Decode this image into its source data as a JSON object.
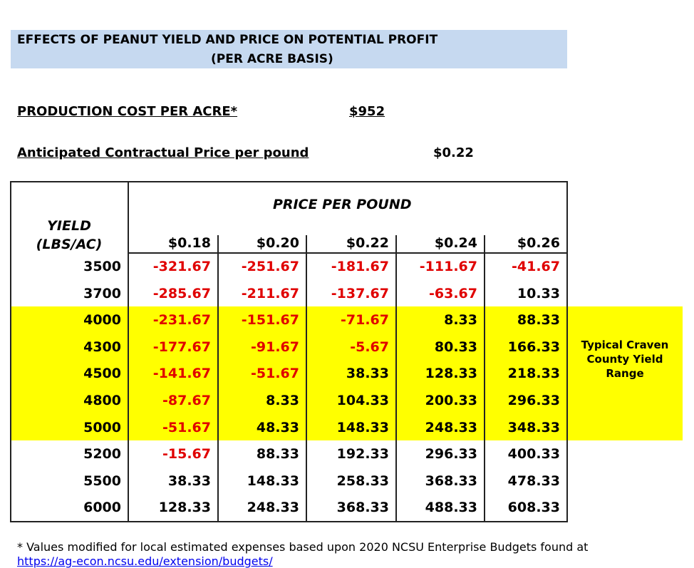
{
  "header": {
    "title": "EFFECTS OF PEANUT YIELD AND PRICE ON POTENTIAL PROFIT",
    "subtitle": "(PER ACRE BASIS)"
  },
  "production_cost": {
    "label": "PRODUCTION COST PER ACRE*",
    "value": "$952"
  },
  "contract_price": {
    "label": "Anticipated Contractual Price per pound",
    "value": "$0.22"
  },
  "table": {
    "price_header": "PRICE PER POUND",
    "yield_header": [
      "YIELD",
      "(LBS/AC)"
    ],
    "columns": [
      "$0.18",
      "$0.20",
      "$0.22",
      "$0.24",
      "$0.26"
    ],
    "rows": [
      {
        "yield": 3500,
        "values": [
          -321.67,
          -251.67,
          -181.67,
          -111.67,
          -41.67
        ]
      },
      {
        "yield": 3700,
        "values": [
          -285.67,
          -211.67,
          -137.67,
          -63.67,
          10.33
        ]
      },
      {
        "yield": 4000,
        "values": [
          -231.67,
          -151.67,
          -71.67,
          8.33,
          88.33
        ]
      },
      {
        "yield": 4300,
        "values": [
          -177.67,
          -91.67,
          -5.67,
          80.33,
          166.33
        ]
      },
      {
        "yield": 4500,
        "values": [
          -141.67,
          -51.67,
          38.33,
          128.33,
          218.33
        ]
      },
      {
        "yield": 4800,
        "values": [
          -87.67,
          8.33,
          104.33,
          200.33,
          296.33
        ]
      },
      {
        "yield": 5000,
        "values": [
          -51.67,
          48.33,
          148.33,
          248.33,
          348.33
        ]
      },
      {
        "yield": 5200,
        "values": [
          -15.67,
          88.33,
          192.33,
          296.33,
          400.33
        ]
      },
      {
        "yield": 5500,
        "values": [
          38.33,
          148.33,
          258.33,
          368.33,
          478.33
        ]
      },
      {
        "yield": 6000,
        "values": [
          128.33,
          248.33,
          368.33,
          488.33,
          608.33
        ]
      }
    ],
    "highlight_note": "Typical Craven County Yield Range"
  },
  "footnote": {
    "text": "* Values modified for local estimated expenses based upon 2020 NCSU Enterprise Budgets found at",
    "link": "https://ag-econ.ncsu.edu/extension/budgets/"
  }
}
